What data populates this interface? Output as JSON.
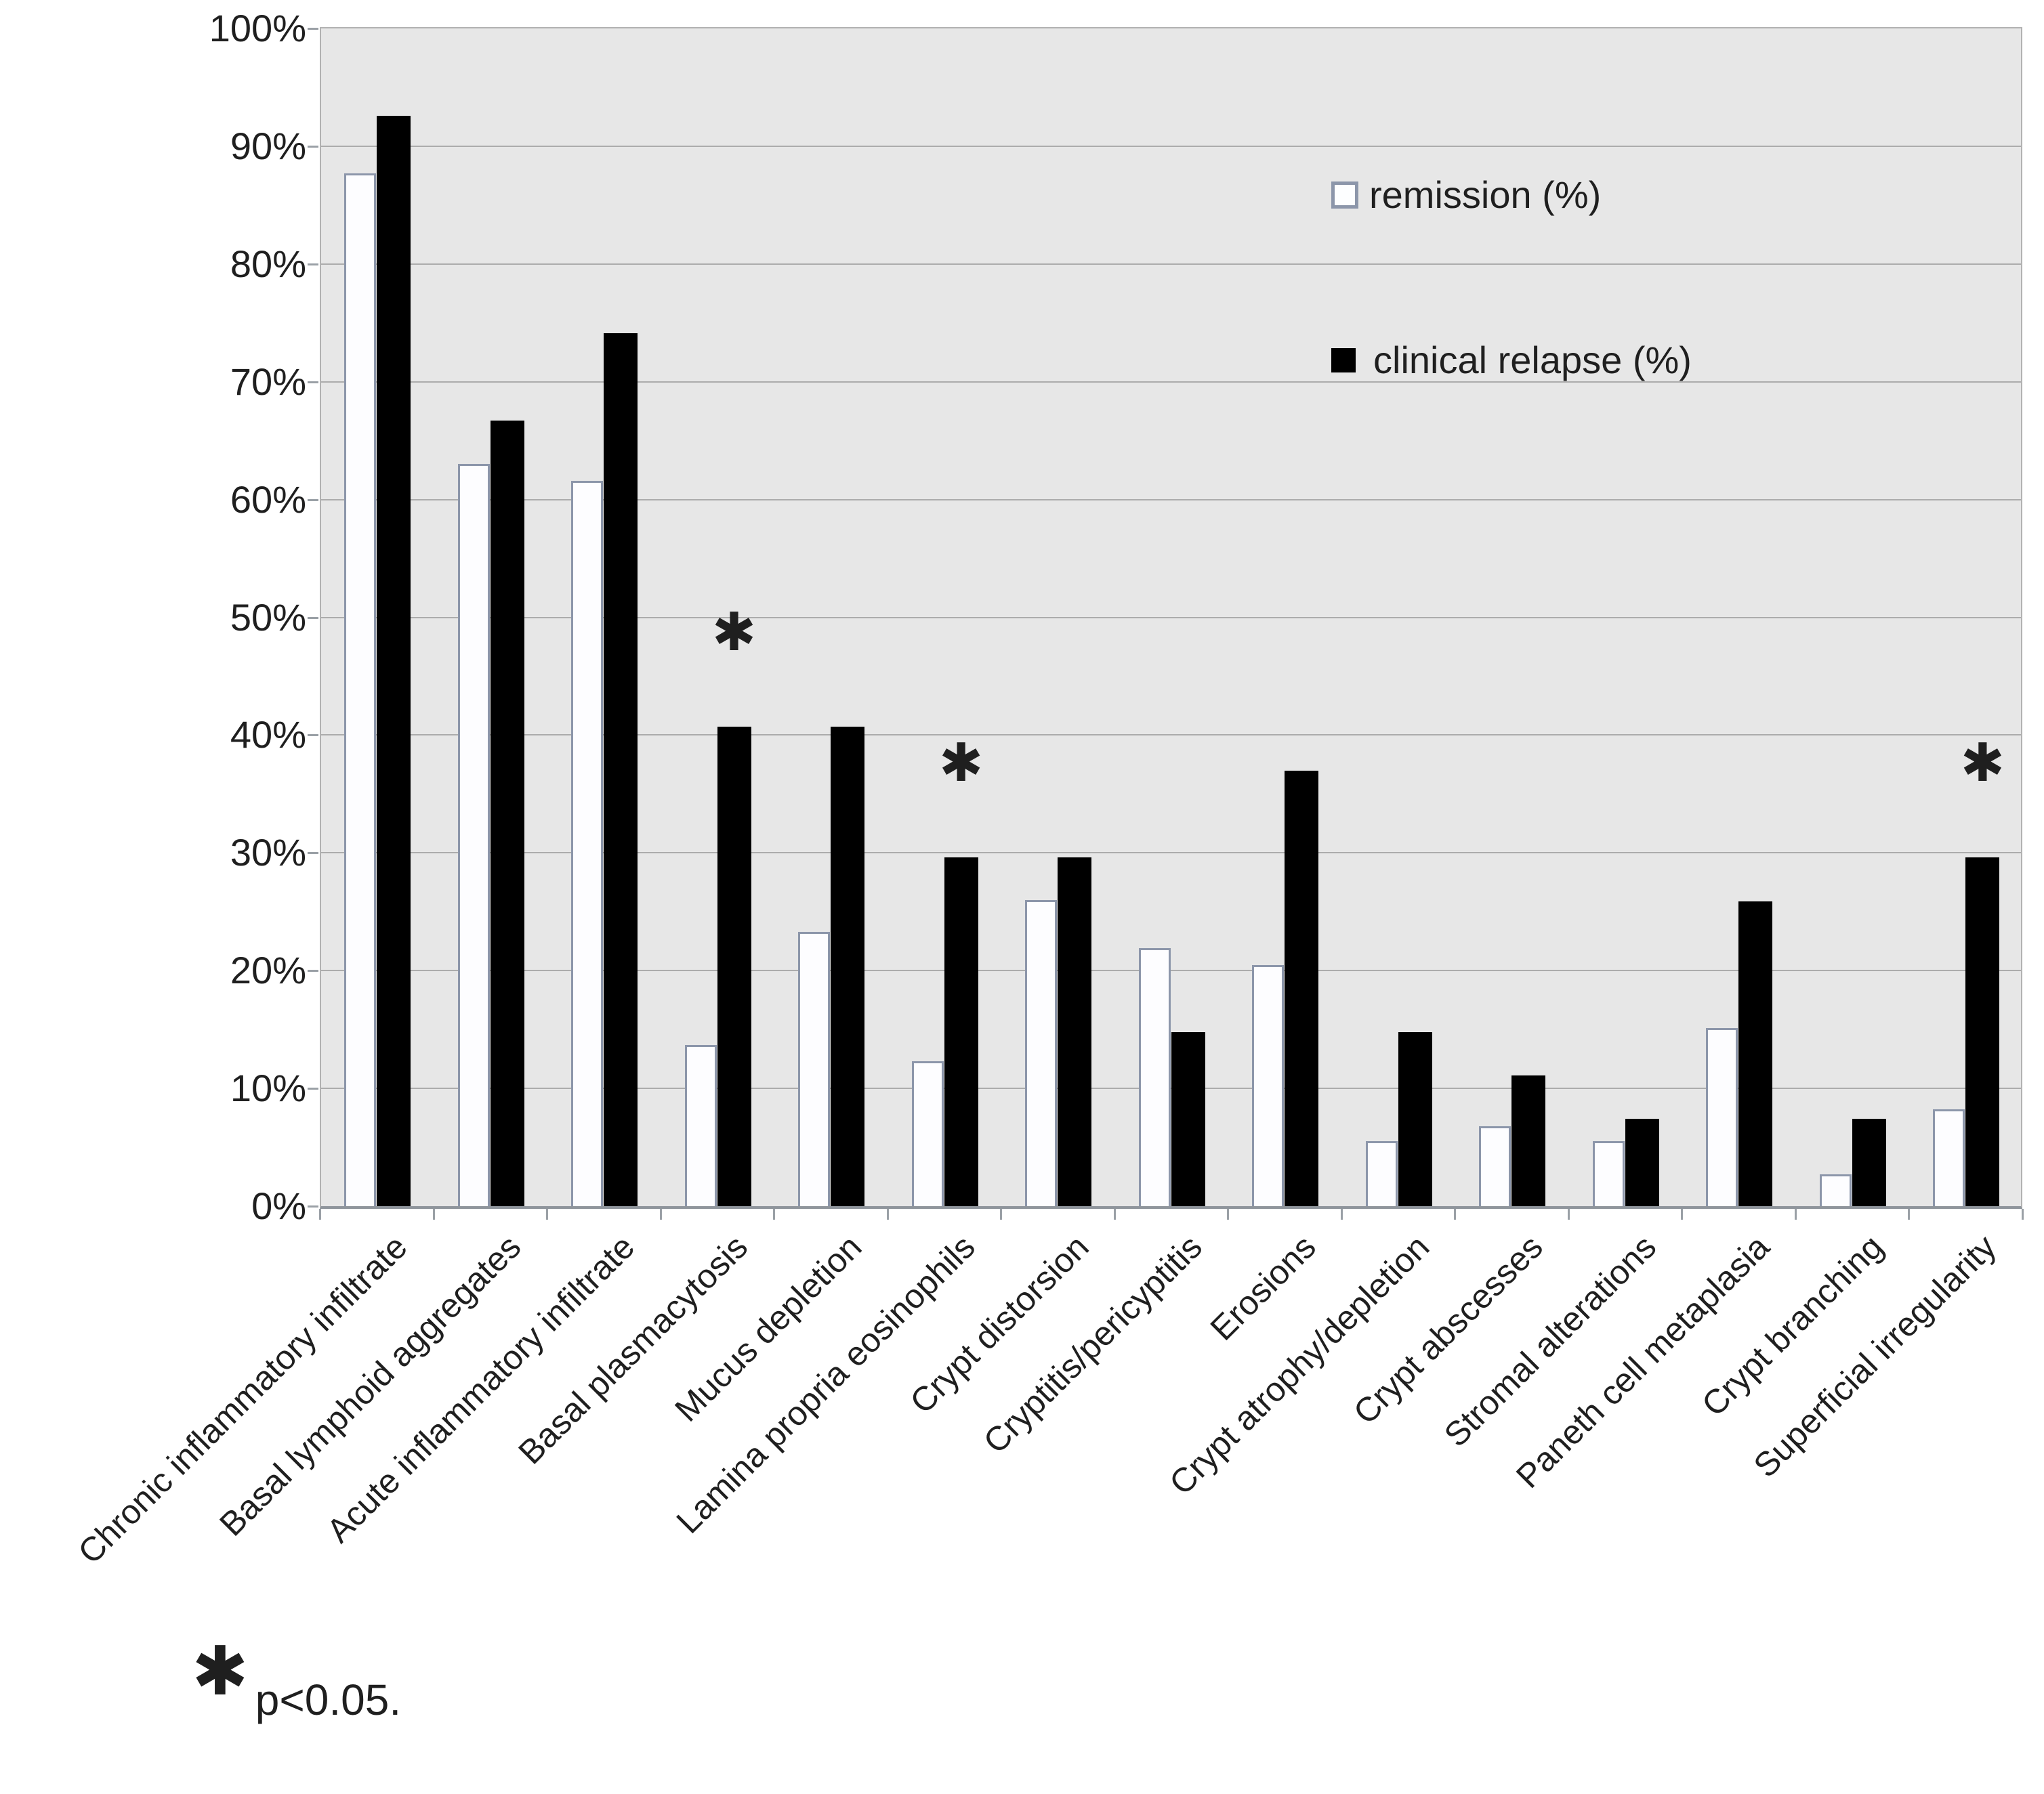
{
  "chart_data": {
    "type": "bar",
    "title": "",
    "xlabel": "",
    "ylabel": "",
    "categories": [
      "Chronic inflammatory infiltrate",
      "Basal lymphoid aggregates",
      "Acute inflammatory infiltrate",
      "Basal plasmacytosis",
      "Mucus depletion",
      "Lamina propria eosinophils",
      "Crypt distorsion",
      "Cryptitis/pericyptitis",
      "Erosions",
      "Crypt atrophy/depletion",
      "Crypt abscesses",
      "Stromal alterations",
      "Paneth cell metaplasia",
      "Crypt branching",
      "Superficial irregularity"
    ],
    "series": [
      {
        "name": "remission (%)",
        "values": [
          87.7,
          63.0,
          61.6,
          13.7,
          23.3,
          12.3,
          26.0,
          21.9,
          20.5,
          5.5,
          6.8,
          5.5,
          15.1,
          2.7,
          8.2
        ],
        "style": "white-outlined"
      },
      {
        "name": "clinical relapse (%)",
        "values": [
          92.6,
          66.7,
          74.1,
          40.7,
          40.7,
          29.6,
          29.6,
          14.8,
          37.0,
          14.8,
          11.1,
          7.4,
          25.9,
          7.4,
          29.6
        ],
        "style": "black"
      }
    ],
    "significant_indices": [
      3,
      5,
      14
    ],
    "significance_marker": "✱",
    "ylim": [
      0,
      100
    ],
    "ytick_step": 10,
    "ytick_labels": [
      "100%",
      "90%",
      "80%",
      "70%",
      "60%",
      "50%",
      "40%",
      "30%",
      "20%",
      "10%",
      "0%"
    ],
    "grid": true,
    "legend_position": "inside-top-right"
  },
  "legend": {
    "items": [
      {
        "label": "remission (%)",
        "swatch": "white-outlined"
      },
      {
        "label": "clinical relapse (%)",
        "swatch": "black"
      }
    ]
  },
  "footnote": {
    "symbol": "✱",
    "text": "p<0.05."
  },
  "colors": {
    "page_bg": "#ffffff",
    "plot_bg": "#e7e7e7",
    "gridline": "#acacac",
    "axis_line": "#8f959c",
    "bar_white_fill": "#fdfdff",
    "bar_white_border": "#8c96aa",
    "bar_black": "#000000",
    "text": "#1f1f1f"
  }
}
